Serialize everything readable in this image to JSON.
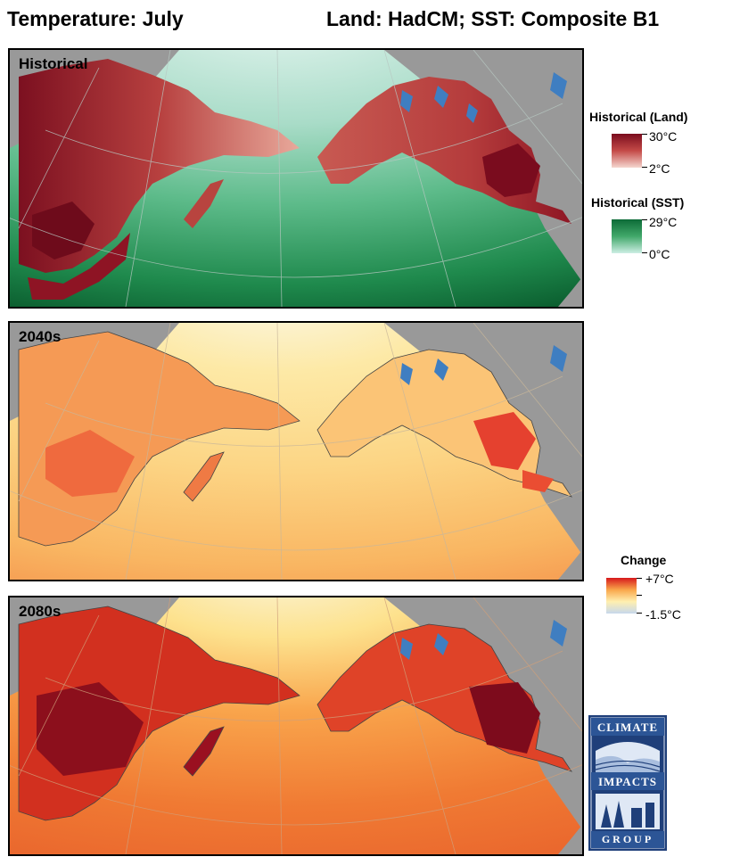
{
  "header": {
    "title": "Temperature: July",
    "scenario": "Land: HadCM; SST: Composite B1"
  },
  "panels": [
    {
      "label": "Historical",
      "field": "historical"
    },
    {
      "label": "2040s",
      "field": "change"
    },
    {
      "label": "2080s",
      "field": "change"
    }
  ],
  "legends": {
    "historical_land": {
      "title": "Historical (Land)",
      "max": "30°C",
      "min": "2°C",
      "colors": [
        "#7a0c1e",
        "#c44a47",
        "#f5d6cf"
      ]
    },
    "historical_sst": {
      "title": "Historical (SST)",
      "max": "29°C",
      "min": "0°C",
      "colors": [
        "#0c6b37",
        "#41a86a",
        "#cdeee4"
      ]
    },
    "change": {
      "title": "Change",
      "max": "+7°C",
      "min": "-1.5°C",
      "colors": [
        "#d7191c",
        "#f9a64a",
        "#ffefb0",
        "#c7d8ec"
      ]
    }
  },
  "logo": {
    "line1": "CLIMATE",
    "line2": "IMPACTS",
    "line3": "GROUP",
    "icon": "climate-impacts-group-logo"
  }
}
